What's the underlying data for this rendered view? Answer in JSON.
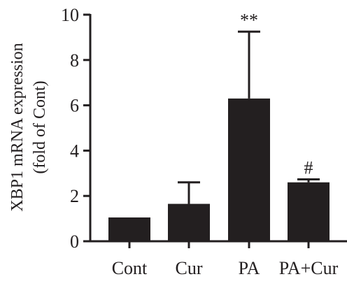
{
  "chart_data": {
    "type": "bar",
    "categories": [
      "Cont",
      "Cur",
      "PA",
      "PA+Cur"
    ],
    "values": [
      1.05,
      1.65,
      6.3,
      2.6
    ],
    "errors": [
      0,
      0.95,
      2.95,
      0.13
    ],
    "annotations": [
      "",
      "",
      "**",
      "#"
    ],
    "ylabel_line1": "XBP1 mRNA expression",
    "ylabel_line2": "(fold of Cont)",
    "ylim": [
      0,
      10
    ],
    "yticks": [
      0,
      2,
      4,
      6,
      8,
      10
    ],
    "bar_color": "#231f20",
    "grid": false,
    "legend": "none"
  }
}
